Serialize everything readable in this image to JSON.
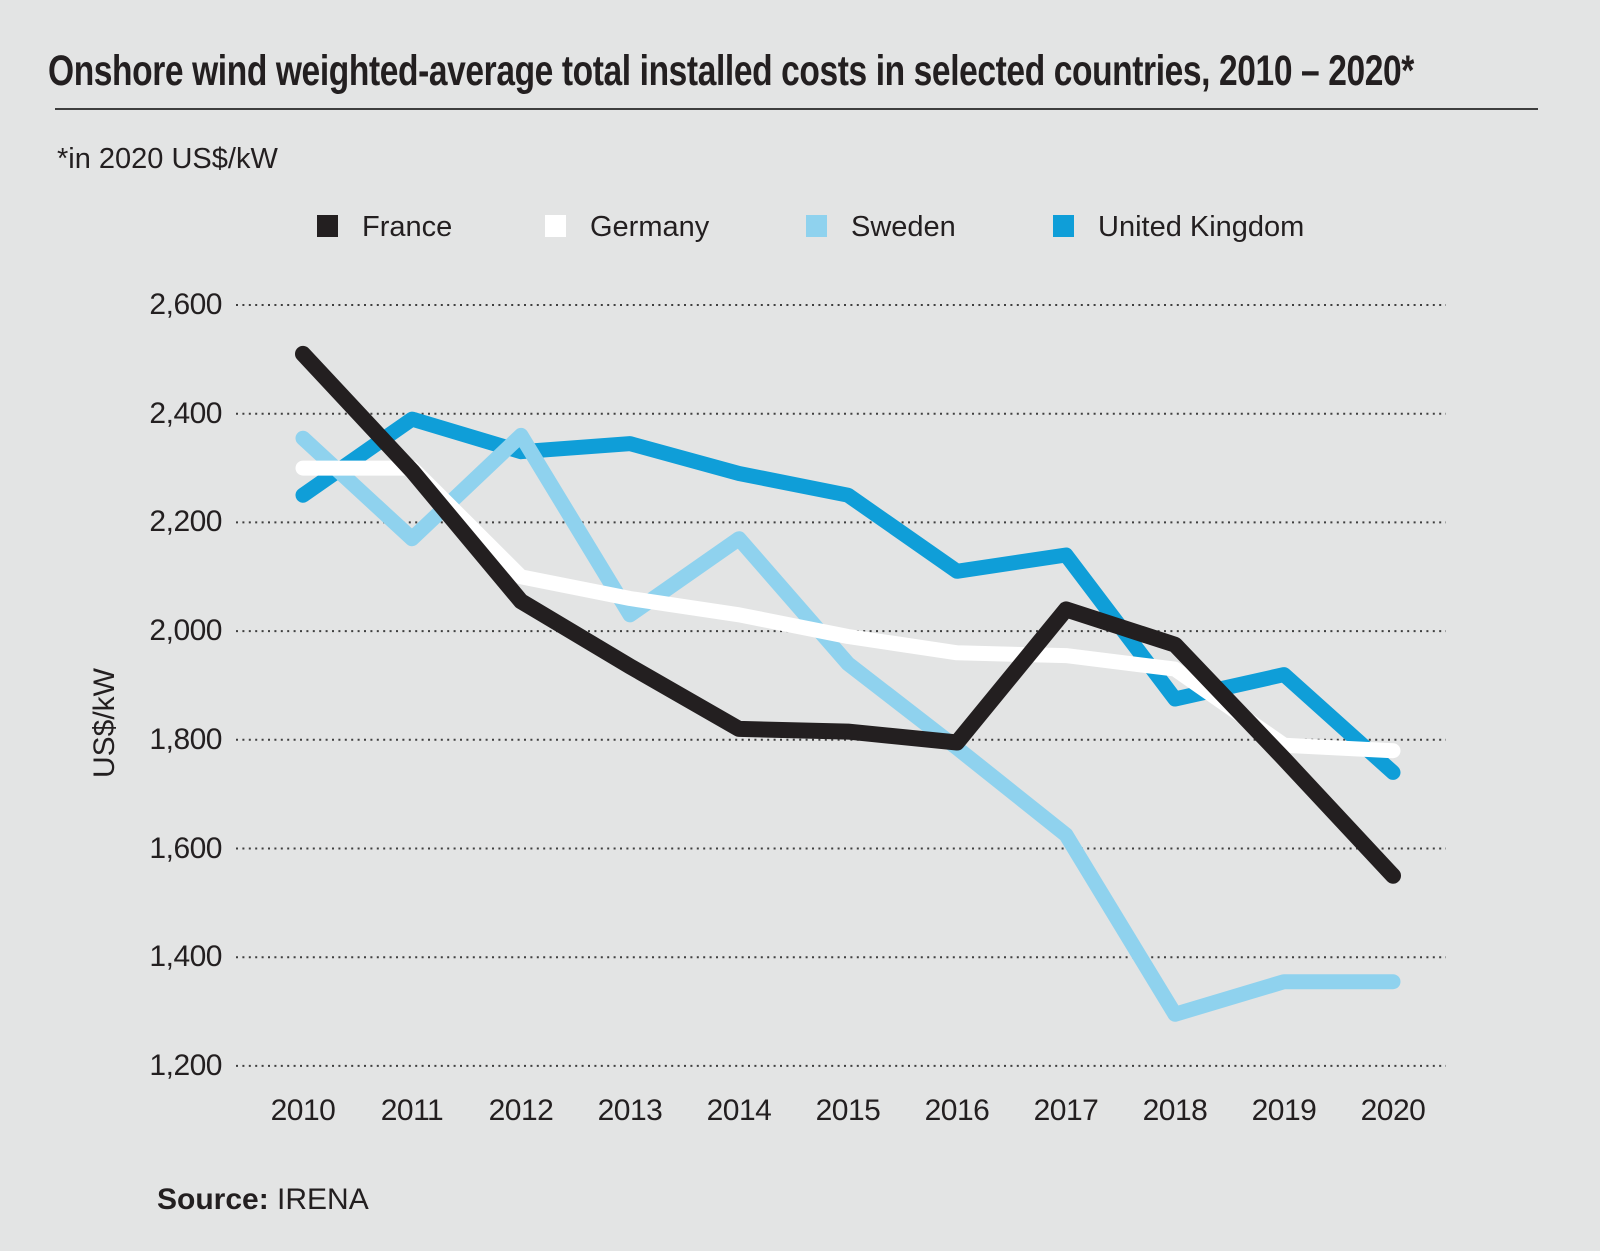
{
  "header": {
    "title": "Onshore wind weighted-average total installed costs in selected countries, 2010 – 2020*",
    "footnote": "*in 2020 US$/kW"
  },
  "source": {
    "label": "Source:",
    "value": "IRENA"
  },
  "colors": {
    "background": "#e3e4e4",
    "ink": "#231f20",
    "gridline": "#3f3f3f"
  },
  "chart_data": {
    "type": "line",
    "title": "Onshore wind weighted-average total installed costs in selected countries, 2010 – 2020*",
    "subtitle": "*in 2020 US$/kW",
    "categories": [
      "2010",
      "2011",
      "2012",
      "2013",
      "2014",
      "2015",
      "2016",
      "2017",
      "2018",
      "2019",
      "2020"
    ],
    "series": [
      {
        "name": "France",
        "color": "#231f20",
        "values": [
          2510,
          2295,
          2055,
          1935,
          1820,
          1815,
          1795,
          2040,
          1975,
          1765,
          1550
        ]
      },
      {
        "name": "Germany",
        "color": "#ffffff",
        "values": [
          2300,
          2300,
          2100,
          2060,
          2030,
          1990,
          1960,
          1955,
          1930,
          1790,
          1780
        ]
      },
      {
        "name": "Sweden",
        "color": "#8fd2ee",
        "values": [
          2355,
          2170,
          2360,
          2030,
          2170,
          1940,
          1785,
          1625,
          1295,
          1355,
          1355
        ]
      },
      {
        "name": "United Kingdom",
        "color": "#0f9ed8",
        "values": [
          2250,
          2390,
          2330,
          2345,
          2290,
          2250,
          2110,
          2140,
          1875,
          1920,
          1740
        ]
      }
    ],
    "xlabel": "",
    "ylabel": "US$/kW",
    "ylim": [
      1200,
      2600
    ],
    "ytick_step": 200,
    "ytick_labels": [
      "2,600",
      "2,400",
      "2,200",
      "2,000",
      "1,800",
      "1,600",
      "1,400",
      "1,200"
    ],
    "grid": "horizontal-dotted",
    "legend_position": "top",
    "draw_order": [
      "United Kingdom",
      "Sweden",
      "Germany",
      "France"
    ]
  }
}
